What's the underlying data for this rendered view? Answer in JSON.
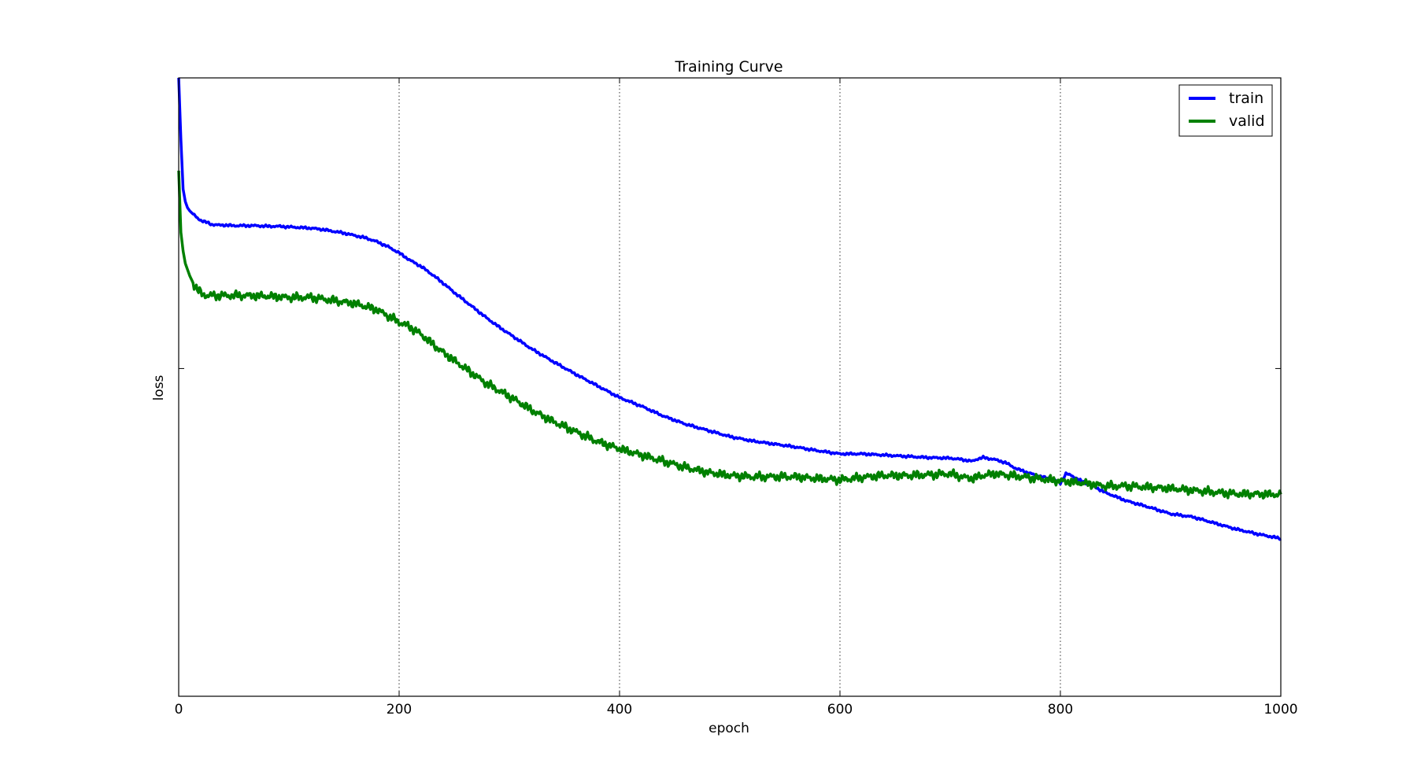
{
  "chart_data": {
    "type": "line",
    "title": "Training Curve",
    "xlabel": "epoch",
    "ylabel": "loss",
    "xlim": [
      0,
      1000
    ],
    "ylim": [
      0,
      1
    ],
    "xticks": [
      0,
      200,
      400,
      600,
      800,
      1000
    ],
    "xtick_labels": [
      "0",
      "200",
      "400",
      "600",
      "800",
      "1000"
    ],
    "yticks": [
      0.53
    ],
    "grid": "vertical-dotted",
    "legend": "top-right",
    "series": [
      {
        "name": "train",
        "color": "#0000ff",
        "x": [
          0,
          2,
          4,
          6,
          8,
          10,
          14,
          18,
          22,
          26,
          30,
          35,
          40,
          50,
          60,
          70,
          80,
          90,
          100,
          110,
          120,
          130,
          140,
          150,
          160,
          170,
          180,
          190,
          200,
          205,
          210,
          215,
          220,
          230,
          240,
          250,
          260,
          270,
          280,
          290,
          300,
          320,
          340,
          360,
          380,
          400,
          420,
          440,
          460,
          480,
          500,
          520,
          540,
          560,
          580,
          600,
          620,
          640,
          660,
          680,
          700,
          710,
          720,
          725,
          730,
          740,
          750,
          760,
          770,
          780,
          790,
          795,
          800,
          805,
          810,
          820,
          830,
          840,
          860,
          880,
          900,
          920,
          940,
          960,
          980,
          1000
        ],
        "y": [
          1.0,
          0.9,
          0.82,
          0.8,
          0.79,
          0.785,
          0.778,
          0.772,
          0.768,
          0.766,
          0.763,
          0.762,
          0.762,
          0.761,
          0.761,
          0.761,
          0.76,
          0.76,
          0.759,
          0.758,
          0.757,
          0.755,
          0.752,
          0.749,
          0.745,
          0.741,
          0.735,
          0.727,
          0.717,
          0.711,
          0.705,
          0.7,
          0.695,
          0.682,
          0.668,
          0.653,
          0.639,
          0.625,
          0.611,
          0.598,
          0.586,
          0.562,
          0.541,
          0.521,
          0.502,
          0.483,
          0.469,
          0.453,
          0.44,
          0.43,
          0.42,
          0.413,
          0.408,
          0.403,
          0.397,
          0.392,
          0.392,
          0.39,
          0.388,
          0.386,
          0.385,
          0.383,
          0.38,
          0.384,
          0.386,
          0.383,
          0.378,
          0.368,
          0.362,
          0.356,
          0.352,
          0.349,
          0.345,
          0.36,
          0.357,
          0.347,
          0.34,
          0.33,
          0.316,
          0.306,
          0.295,
          0.29,
          0.28,
          0.27,
          0.262,
          0.255
        ]
      },
      {
        "name": "valid",
        "color": "#008000",
        "x": [
          0,
          2,
          4,
          6,
          8,
          10,
          14,
          18,
          22,
          26,
          30,
          40,
          60,
          80,
          100,
          120,
          140,
          160,
          180,
          200,
          210,
          220,
          230,
          240,
          260,
          280,
          300,
          320,
          340,
          360,
          380,
          400,
          420,
          440,
          460,
          480,
          500,
          520,
          540,
          560,
          580,
          600,
          620,
          640,
          660,
          680,
          700,
          710,
          720,
          730,
          740,
          760,
          780,
          800,
          820,
          840,
          860,
          880,
          900,
          920,
          940,
          960,
          980,
          1000
        ],
        "y": [
          0.85,
          0.75,
          0.72,
          0.7,
          0.69,
          0.68,
          0.665,
          0.655,
          0.65,
          0.648,
          0.648,
          0.648,
          0.648,
          0.647,
          0.645,
          0.645,
          0.64,
          0.635,
          0.625,
          0.605,
          0.597,
          0.585,
          0.57,
          0.556,
          0.53,
          0.505,
          0.485,
          0.463,
          0.444,
          0.428,
          0.412,
          0.4,
          0.39,
          0.38,
          0.37,
          0.362,
          0.357,
          0.355,
          0.355,
          0.355,
          0.352,
          0.35,
          0.354,
          0.357,
          0.357,
          0.358,
          0.36,
          0.355,
          0.352,
          0.357,
          0.36,
          0.356,
          0.352,
          0.348,
          0.345,
          0.34,
          0.34,
          0.338,
          0.336,
          0.333,
          0.33,
          0.327,
          0.327,
          0.326
        ]
      }
    ]
  }
}
